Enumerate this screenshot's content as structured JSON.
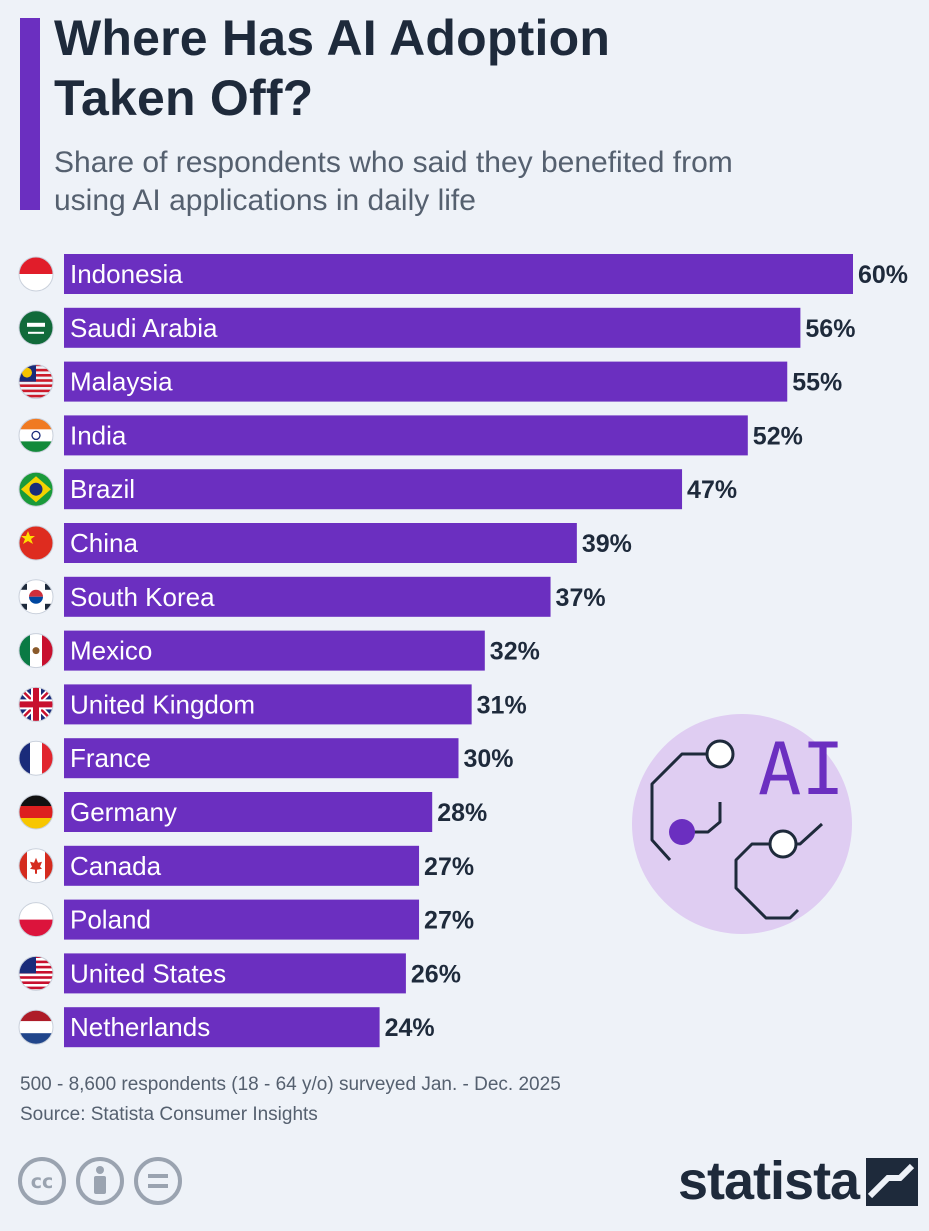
{
  "header": {
    "title": "Where Has AI Adoption Taken Off?",
    "subtitle": "Share of respondents who said they benefited from using AI applications in daily life"
  },
  "chart_data": {
    "type": "bar",
    "orientation": "horizontal",
    "title": "Where Has AI Adoption Taken Off?",
    "subtitle": "Share of respondents who said they benefited from using AI applications in daily life",
    "categories": [
      "Indonesia",
      "Saudi Arabia",
      "Malaysia",
      "India",
      "Brazil",
      "China",
      "South Korea",
      "Mexico",
      "United Kingdom",
      "France",
      "Germany",
      "Canada",
      "Poland",
      "United States",
      "Netherlands"
    ],
    "values": [
      60,
      56,
      55,
      52,
      47,
      39,
      37,
      32,
      31,
      30,
      28,
      27,
      27,
      26,
      24
    ],
    "value_labels": [
      "60%",
      "56%",
      "55%",
      "52%",
      "47%",
      "39%",
      "37%",
      "32%",
      "31%",
      "30%",
      "28%",
      "27%",
      "27%",
      "26%",
      "24%"
    ],
    "unit": "%",
    "xlim": [
      0,
      60
    ],
    "bar_color": "#6b2fc0"
  },
  "illustration": {
    "label": "AI"
  },
  "footer": {
    "note": "500 - 8,600 respondents (18 - 64 y/o) surveyed Jan. - Dec. 2025",
    "source": "Source: Statista Consumer Insights",
    "brand": "statista",
    "license_cc": "cc"
  },
  "colors": {
    "accent": "#6b2fc0",
    "background": "#eef2f8",
    "text_dark": "#1e2a3b",
    "text_muted": "#55606f",
    "illustration_circle": "#dfcdf2"
  }
}
